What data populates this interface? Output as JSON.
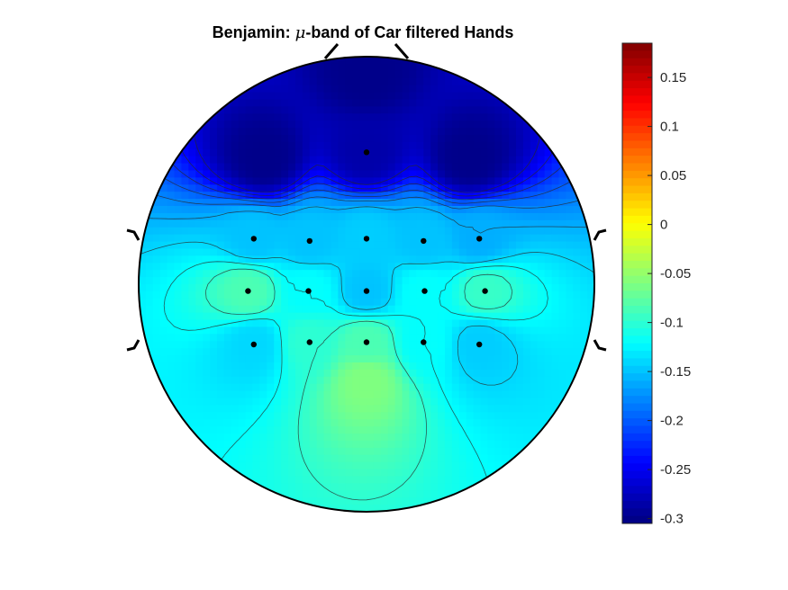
{
  "chart_data": {
    "type": "heatmap",
    "subtype": "eeg-topographic-map",
    "title": {
      "prefix": "Benjamin: ",
      "symbol": "μ",
      "suffix": "-band of Car filtered Hands"
    },
    "colormap": "jet",
    "clim": [
      -0.305,
      0.185
    ],
    "colorbar": {
      "location": "right",
      "ticks": [
        -0.3,
        -0.25,
        -0.2,
        -0.15,
        -0.1,
        -0.05,
        0,
        0.05,
        0.1,
        0.15
      ],
      "tick_labels": [
        "-0.3",
        "-0.25",
        "-0.2",
        "-0.15",
        "-0.1",
        "-0.05",
        "0",
        "0.05",
        "0.1",
        "0.15"
      ]
    },
    "contour_levels": [
      -0.26,
      -0.24,
      -0.22,
      -0.2,
      -0.18,
      -0.16,
      -0.14,
      -0.12,
      -0.1
    ],
    "electrodes": [
      {
        "x": 0.0,
        "y": 0.58,
        "value": -0.285
      },
      {
        "x": -0.495,
        "y": 0.2,
        "value": -0.15
      },
      {
        "x": -0.25,
        "y": 0.19,
        "value": -0.15
      },
      {
        "x": 0.0,
        "y": 0.2,
        "value": -0.145
      },
      {
        "x": 0.25,
        "y": 0.19,
        "value": -0.15
      },
      {
        "x": 0.495,
        "y": 0.2,
        "value": -0.16
      },
      {
        "x": -0.52,
        "y": -0.03,
        "value": -0.085
      },
      {
        "x": -0.255,
        "y": -0.03,
        "value": -0.12
      },
      {
        "x": 0.0,
        "y": -0.03,
        "value": -0.15
      },
      {
        "x": 0.255,
        "y": -0.03,
        "value": -0.12
      },
      {
        "x": 0.52,
        "y": -0.03,
        "value": -0.095
      },
      {
        "x": -0.495,
        "y": -0.265,
        "value": -0.14
      },
      {
        "x": -0.25,
        "y": -0.255,
        "value": -0.1
      },
      {
        "x": 0.0,
        "y": -0.255,
        "value": -0.085
      },
      {
        "x": 0.25,
        "y": -0.255,
        "value": -0.12
      },
      {
        "x": 0.495,
        "y": -0.265,
        "value": -0.145
      }
    ],
    "anchors": [
      {
        "x": 0.0,
        "y": -0.42,
        "value": -0.06
      },
      {
        "x": 0.45,
        "y": 0.55,
        "value": -0.3
      },
      {
        "x": -0.45,
        "y": 0.55,
        "value": -0.3
      },
      {
        "x": 0.0,
        "y": 0.92,
        "value": -0.3
      }
    ]
  }
}
